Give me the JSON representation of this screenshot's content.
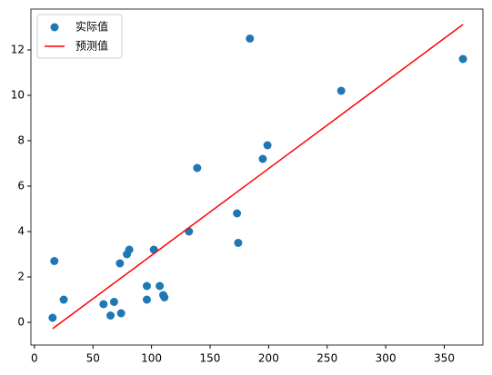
{
  "chart_data": {
    "type": "scatter",
    "series": [
      {
        "name": "实际值",
        "type": "scatter",
        "color": "#1f77b4",
        "x": [
          15.5,
          17,
          25,
          59,
          65,
          68,
          73,
          74,
          79,
          81,
          96,
          96,
          102,
          107,
          110,
          111,
          132,
          139,
          173,
          174,
          184,
          195,
          199,
          262,
          366
        ],
        "values": [
          0.2,
          2.7,
          1.0,
          0.8,
          0.3,
          0.9,
          2.6,
          0.4,
          3.0,
          3.2,
          1.6,
          1.0,
          3.2,
          1.6,
          1.2,
          1.1,
          4.0,
          6.8,
          4.8,
          3.5,
          12.5,
          7.2,
          7.8,
          10.2,
          11.6
        ]
      },
      {
        "name": "预测值",
        "type": "line",
        "color": "#ff0000",
        "x": [
          15.5,
          366
        ],
        "values": [
          -0.28,
          13.12
        ]
      }
    ],
    "xlim": [
      -3,
      383
    ],
    "ylim": [
      -1,
      13.8
    ],
    "xticks": [
      0,
      50,
      100,
      150,
      200,
      250,
      300,
      350
    ],
    "yticks": [
      0,
      2,
      4,
      6,
      8,
      10,
      12
    ],
    "legend": "upper left"
  }
}
